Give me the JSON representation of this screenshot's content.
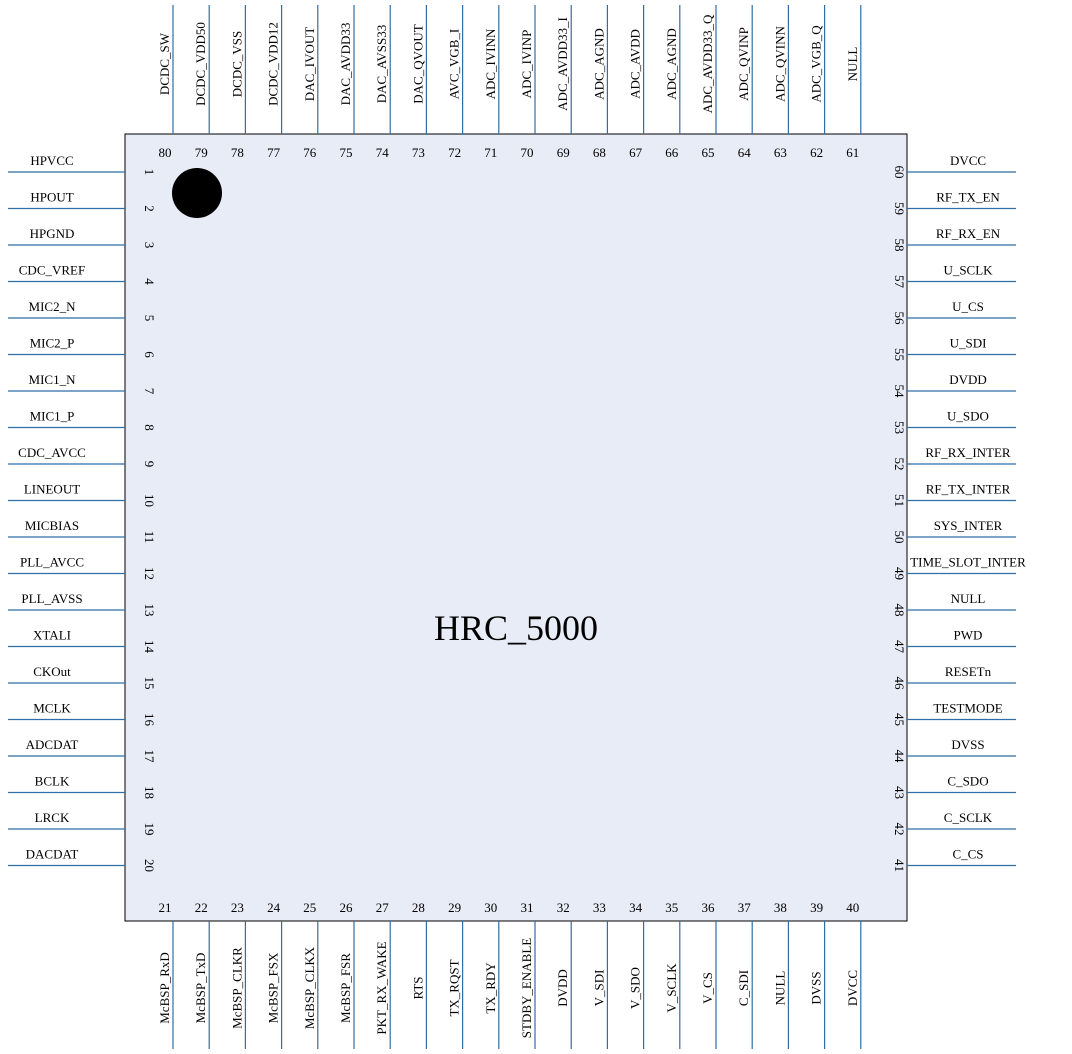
{
  "chip": {
    "name": "HRC_5000",
    "body_color": "#e8ecf6",
    "line_color": "#2f6ea8"
  },
  "pins": {
    "left": [
      {
        "num": "1",
        "name": "HPVCC"
      },
      {
        "num": "2",
        "name": "HPOUT"
      },
      {
        "num": "3",
        "name": "HPGND"
      },
      {
        "num": "4",
        "name": "CDC_VREF"
      },
      {
        "num": "5",
        "name": "MIC2_N"
      },
      {
        "num": "6",
        "name": "MIC2_P"
      },
      {
        "num": "7",
        "name": "MIC1_N"
      },
      {
        "num": "8",
        "name": "MIC1_P"
      },
      {
        "num": "9",
        "name": "CDC_AVCC"
      },
      {
        "num": "10",
        "name": "LINEOUT"
      },
      {
        "num": "11",
        "name": "MICBIAS"
      },
      {
        "num": "12",
        "name": "PLL_AVCC"
      },
      {
        "num": "13",
        "name": "PLL_AVSS"
      },
      {
        "num": "14",
        "name": "XTALI"
      },
      {
        "num": "15",
        "name": "CKOut"
      },
      {
        "num": "16",
        "name": "MCLK"
      },
      {
        "num": "17",
        "name": "ADCDAT"
      },
      {
        "num": "18",
        "name": "BCLK"
      },
      {
        "num": "19",
        "name": "LRCK"
      },
      {
        "num": "20",
        "name": "DACDAT"
      }
    ],
    "bottom": [
      {
        "num": "21",
        "name": "McBSP_RxD"
      },
      {
        "num": "22",
        "name": "McBSP_TxD"
      },
      {
        "num": "23",
        "name": "McBSP_CLKR"
      },
      {
        "num": "24",
        "name": "McBSP_FSX"
      },
      {
        "num": "25",
        "name": "McBSP_CLKX"
      },
      {
        "num": "26",
        "name": "McBSP_FSR"
      },
      {
        "num": "27",
        "name": "PKT_RX_WAKE"
      },
      {
        "num": "28",
        "name": "RTS"
      },
      {
        "num": "29",
        "name": "TX_RQST"
      },
      {
        "num": "30",
        "name": "TX_RDY"
      },
      {
        "num": "31",
        "name": "STDBY_ENABLE"
      },
      {
        "num": "32",
        "name": "DVDD"
      },
      {
        "num": "33",
        "name": "V_SDI"
      },
      {
        "num": "34",
        "name": "V_SDO"
      },
      {
        "num": "35",
        "name": "V_SCLK"
      },
      {
        "num": "36",
        "name": "V_CS"
      },
      {
        "num": "37",
        "name": "C_SDI"
      },
      {
        "num": "38",
        "name": "NULL"
      },
      {
        "num": "39",
        "name": "DVSS"
      },
      {
        "num": "40",
        "name": "DVCC"
      }
    ],
    "right": [
      {
        "num": "60",
        "name": "DVCC"
      },
      {
        "num": "59",
        "name": "RF_TX_EN"
      },
      {
        "num": "58",
        "name": "RF_RX_EN"
      },
      {
        "num": "57",
        "name": "U_SCLK"
      },
      {
        "num": "56",
        "name": "U_CS"
      },
      {
        "num": "55",
        "name": "U_SDI"
      },
      {
        "num": "54",
        "name": "DVDD"
      },
      {
        "num": "53",
        "name": "U_SDO"
      },
      {
        "num": "52",
        "name": "RF_RX_INTER"
      },
      {
        "num": "51",
        "name": "RF_TX_INTER"
      },
      {
        "num": "50",
        "name": "SYS_INTER"
      },
      {
        "num": "49",
        "name": "TIME_SLOT_INTER"
      },
      {
        "num": "48",
        "name": "NULL"
      },
      {
        "num": "47",
        "name": "PWD"
      },
      {
        "num": "46",
        "name": "RESETn"
      },
      {
        "num": "45",
        "name": "TESTMODE"
      },
      {
        "num": "44",
        "name": "DVSS"
      },
      {
        "num": "43",
        "name": "C_SDO"
      },
      {
        "num": "42",
        "name": "C_SCLK"
      },
      {
        "num": "41",
        "name": "C_CS"
      }
    ],
    "top": [
      {
        "num": "80",
        "name": "DCDC_SW"
      },
      {
        "num": "79",
        "name": "DCDC_VDD50"
      },
      {
        "num": "78",
        "name": "DCDC_VSS"
      },
      {
        "num": "77",
        "name": "DCDC_VDD12"
      },
      {
        "num": "76",
        "name": "DAC_IVOUT"
      },
      {
        "num": "75",
        "name": "DAC_AVDD33"
      },
      {
        "num": "74",
        "name": "DAC_AVSS33"
      },
      {
        "num": "73",
        "name": "DAC_QVOUT"
      },
      {
        "num": "72",
        "name": "AVC_VGB_I"
      },
      {
        "num": "71",
        "name": "ADC_IVINN"
      },
      {
        "num": "70",
        "name": "ADC_IVINP"
      },
      {
        "num": "69",
        "name": "ADC_AVDD33_I"
      },
      {
        "num": "68",
        "name": "ADC_AGND"
      },
      {
        "num": "67",
        "name": "ADC_AVDD"
      },
      {
        "num": "66",
        "name": "ADC_AGND"
      },
      {
        "num": "65",
        "name": "ADC_AVDD33_Q"
      },
      {
        "num": "64",
        "name": "ADC_QVINP"
      },
      {
        "num": "63",
        "name": "ADC_QVINN"
      },
      {
        "num": "62",
        "name": "ADC_VGB_Q"
      },
      {
        "num": "61",
        "name": "NULL"
      }
    ]
  }
}
